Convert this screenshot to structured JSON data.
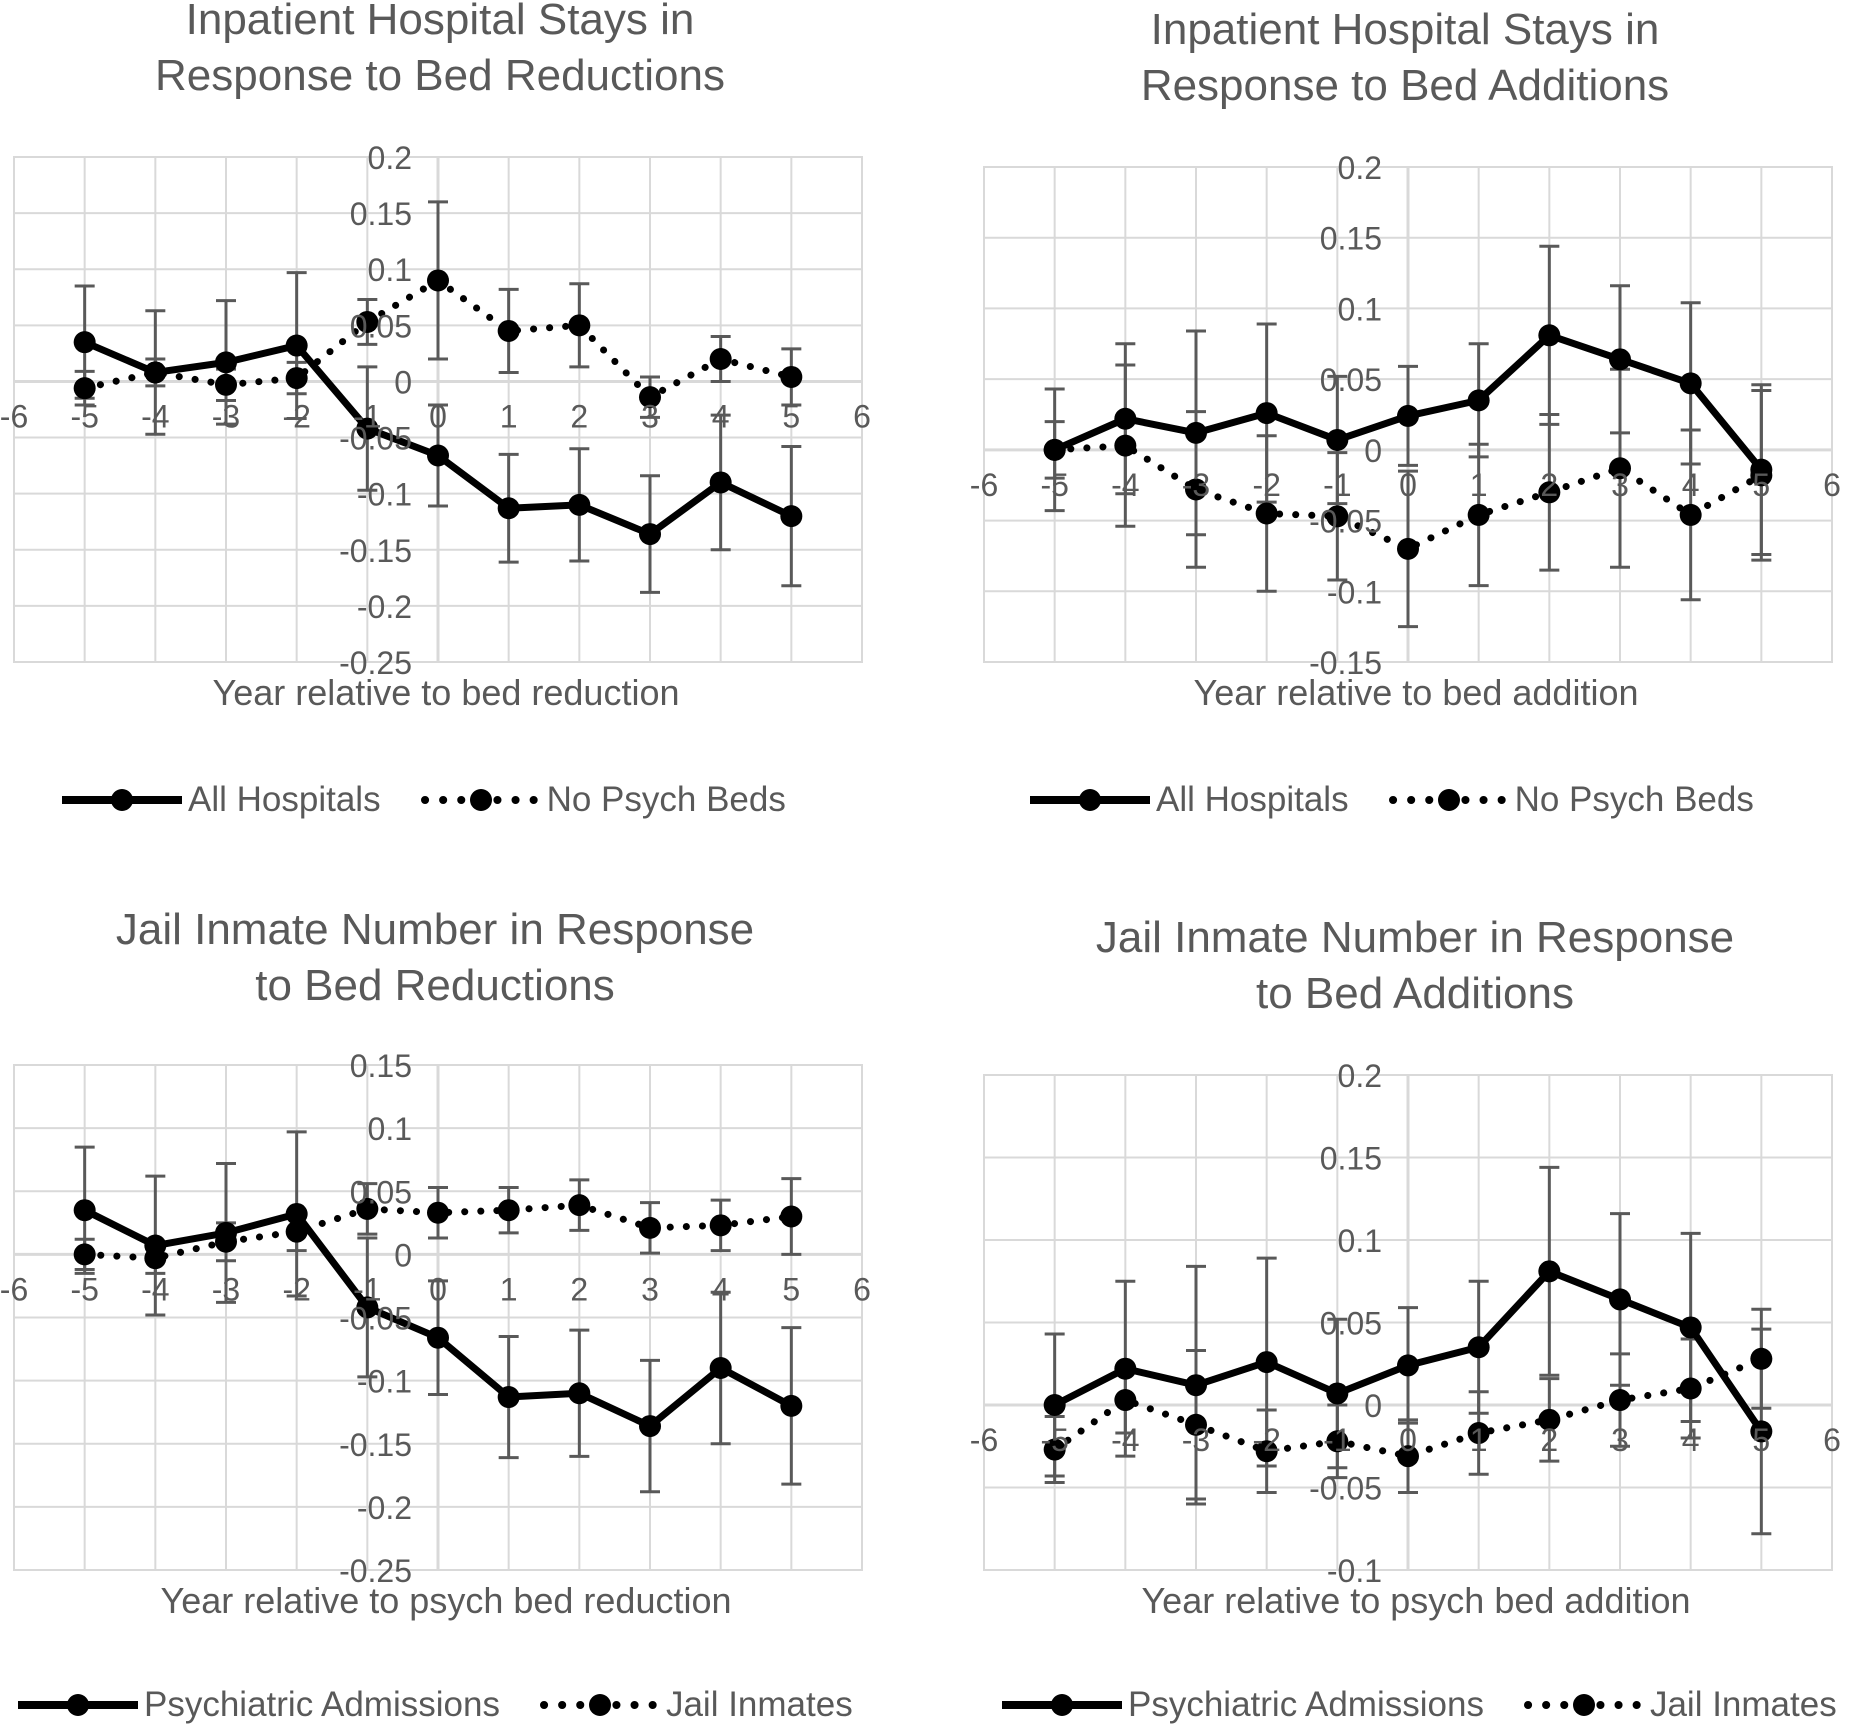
{
  "colors": {
    "series": "#000000",
    "grid": "#d9d9d9",
    "errorbar": "#595959",
    "text": "#595959"
  },
  "chart_data": [
    {
      "type": "line",
      "title": "Inpatient Hospital Stays in\nResponse to Bed Reductions",
      "xlabel": "Year relative to bed reduction",
      "ylabel": "",
      "xlim": [
        -6,
        6
      ],
      "ylim": [
        -0.25,
        0.2
      ],
      "x_ticks": [
        "-6",
        "-5",
        "-4",
        "-3",
        "-2",
        "-1",
        "0",
        "1",
        "2",
        "3",
        "4",
        "5",
        "6"
      ],
      "y_ticks": [
        "0.2",
        "0.15",
        "0.1",
        "0.05",
        "0",
        "-0.05",
        "-0.1",
        "-0.15",
        "-0.2",
        "-0.25"
      ],
      "legend_position": "bottom",
      "series": [
        {
          "name": "All Hospitals",
          "style": "solid",
          "x": [
            -5,
            -4,
            -3,
            -2,
            -1,
            0,
            1,
            2,
            3,
            4,
            5
          ],
          "y": [
            0.035,
            0.008,
            0.017,
            0.032,
            -0.042,
            -0.066,
            -0.113,
            -0.11,
            -0.136,
            -0.09,
            -0.12
          ],
          "err": [
            0.05,
            0.055,
            0.055,
            0.065,
            0.055,
            0.045,
            0.048,
            0.05,
            0.052,
            0.06,
            0.062
          ]
        },
        {
          "name": "No Psych Beds",
          "style": "dotted",
          "x": [
            -5,
            -4,
            -3,
            -2,
            -1,
            0,
            1,
            2,
            3,
            4,
            5
          ],
          "y": [
            -0.006,
            0.008,
            -0.003,
            0.003,
            0.053,
            0.09,
            0.045,
            0.05,
            -0.014,
            0.02,
            0.004
          ],
          "err": [
            0.015,
            0.012,
            0.014,
            0.014,
            0.02,
            0.07,
            0.037,
            0.037,
            0.018,
            0.02,
            0.025
          ]
        }
      ]
    },
    {
      "type": "line",
      "title": "Inpatient Hospital Stays in\nResponse to Bed Additions",
      "xlabel": "Year relative to bed addition",
      "ylabel": "",
      "xlim": [
        -6,
        6
      ],
      "ylim": [
        -0.15,
        0.2
      ],
      "x_ticks": [
        "-6",
        "-5",
        "-4",
        "-3",
        "-2",
        "-1",
        "0",
        "1",
        "2",
        "3",
        "4",
        "5",
        "6"
      ],
      "y_ticks": [
        "0.2",
        "0.15",
        "0.1",
        "0.05",
        "0",
        "-0.05",
        "-0.1",
        "-0.15"
      ],
      "legend_position": "bottom",
      "series": [
        {
          "name": "All Hospitals",
          "style": "solid",
          "x": [
            -5,
            -4,
            -3,
            -2,
            -1,
            0,
            1,
            2,
            3,
            4,
            5
          ],
          "y": [
            0.0,
            0.022,
            0.012,
            0.026,
            0.007,
            0.024,
            0.035,
            0.081,
            0.064,
            0.047,
            -0.014
          ],
          "err": [
            0.043,
            0.053,
            0.072,
            0.063,
            0.045,
            0.035,
            0.04,
            0.063,
            0.052,
            0.057,
            0.06
          ]
        },
        {
          "name": "No Psych Beds",
          "style": "dotted",
          "x": [
            -5,
            -4,
            -3,
            -2,
            -1,
            0,
            1,
            2,
            3,
            4,
            5
          ],
          "y": [
            0.0,
            0.003,
            -0.028,
            -0.045,
            -0.047,
            -0.07,
            -0.046,
            -0.03,
            -0.013,
            -0.046,
            -0.018
          ],
          "err": [
            0.02,
            0.057,
            0.055,
            0.055,
            0.045,
            0.055,
            0.05,
            0.055,
            0.07,
            0.06,
            0.06
          ]
        }
      ]
    },
    {
      "type": "line",
      "title": "Jail Inmate Number in Response\nto Bed Reductions",
      "xlabel": "Year relative to psych bed reduction",
      "ylabel": "",
      "xlim": [
        -6,
        6
      ],
      "ylim": [
        -0.25,
        0.15
      ],
      "x_ticks": [
        "-6",
        "-5",
        "-4",
        "-3",
        "-2",
        "-1",
        "0",
        "1",
        "2",
        "3",
        "4",
        "5",
        "6"
      ],
      "y_ticks": [
        "0.15",
        "0.1",
        "0.05",
        "0",
        "-0.05",
        "-0.1",
        "-0.15",
        "-0.2",
        "-0.25"
      ],
      "legend_position": "bottom",
      "series": [
        {
          "name": "Psychiatric Admissions",
          "style": "solid",
          "x": [
            -5,
            -4,
            -3,
            -2,
            -1,
            0,
            1,
            2,
            3,
            4,
            5
          ],
          "y": [
            0.035,
            0.007,
            0.017,
            0.032,
            -0.042,
            -0.066,
            -0.113,
            -0.11,
            -0.136,
            -0.09,
            -0.12
          ],
          "err": [
            0.05,
            0.055,
            0.055,
            0.065,
            0.055,
            0.045,
            0.048,
            0.05,
            0.052,
            0.06,
            0.062
          ]
        },
        {
          "name": "Jail Inmates",
          "style": "dotted",
          "x": [
            -5,
            -4,
            -3,
            -2,
            -1,
            0,
            1,
            2,
            3,
            4,
            5
          ],
          "y": [
            0.0,
            -0.003,
            0.01,
            0.018,
            0.036,
            0.033,
            0.035,
            0.039,
            0.021,
            0.023,
            0.03
          ],
          "err": [
            0.012,
            0.012,
            0.015,
            0.015,
            0.02,
            0.02,
            0.018,
            0.02,
            0.02,
            0.02,
            0.03
          ]
        }
      ]
    },
    {
      "type": "line",
      "title": "Jail Inmate Number in Response\nto Bed Additions",
      "xlabel": "Year relative to psych bed addition",
      "ylabel": "",
      "xlim": [
        -6,
        6
      ],
      "ylim": [
        -0.1,
        0.2
      ],
      "x_ticks": [
        "-6",
        "-5",
        "-4",
        "-3",
        "-2",
        "-1",
        "0",
        "1",
        "2",
        "3",
        "4",
        "5",
        "6"
      ],
      "y_ticks": [
        "0.2",
        "0.15",
        "0.1",
        "0.05",
        "0",
        "-0.05",
        "-0.1"
      ],
      "legend_position": "bottom",
      "series": [
        {
          "name": "Psychiatric Admissions",
          "style": "solid",
          "x": [
            -5,
            -4,
            -3,
            -2,
            -1,
            0,
            1,
            2,
            3,
            4,
            5
          ],
          "y": [
            0.0,
            0.022,
            0.012,
            0.026,
            0.007,
            0.024,
            0.035,
            0.081,
            0.064,
            0.047,
            -0.016
          ],
          "err": [
            0.043,
            0.053,
            0.072,
            0.063,
            0.045,
            0.035,
            0.04,
            0.063,
            0.052,
            0.057,
            0.062
          ]
        },
        {
          "name": "Jail Inmates",
          "style": "dotted",
          "x": [
            -5,
            -4,
            -3,
            -2,
            -1,
            0,
            1,
            2,
            3,
            4,
            5
          ],
          "y": [
            -0.027,
            0.003,
            -0.012,
            -0.028,
            -0.022,
            -0.031,
            -0.017,
            -0.009,
            0.003,
            0.01,
            0.028
          ],
          "err": [
            0.02,
            0.02,
            0.045,
            0.025,
            0.022,
            0.022,
            0.025,
            0.025,
            0.028,
            0.03,
            0.03
          ]
        }
      ]
    }
  ]
}
